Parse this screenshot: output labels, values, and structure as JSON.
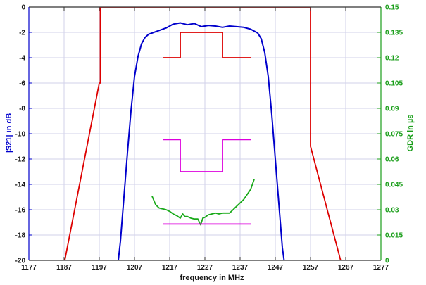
{
  "chart_data": {
    "type": "line",
    "title": "",
    "xlabel": "frequency in MHz",
    "ylabel": "|S21| in dB",
    "y2label": "GDR in µs",
    "xlim": [
      1177,
      1277
    ],
    "ylim": [
      -20,
      0
    ],
    "y2lim": [
      0,
      0.15
    ],
    "xticks": [
      1177,
      1187,
      1197,
      1207,
      1217,
      1227,
      1237,
      1247,
      1257,
      1267,
      1277
    ],
    "yticks": [
      0,
      -2,
      -4,
      -6,
      -8,
      -10,
      -12,
      -14,
      -16,
      -18,
      -20
    ],
    "y2ticks": [
      "0.15",
      "0.135",
      "0.12",
      "0.105",
      "0.09",
      "0.075",
      "0.06",
      "0.045",
      "0.03",
      "0.015",
      "0"
    ],
    "grid": true,
    "colors": {
      "grid": "#d2d2ea",
      "axis_left": "#0000cc",
      "axis_right": "#1a9e1a",
      "s21": "#0000cc",
      "mask": "#dd0000",
      "gdr": "#1aaa1a",
      "gdr_mask": "#dd00dd"
    },
    "series": [
      {
        "axis": "left",
        "color": "#0000cc",
        "x": [
          1202,
          1203,
          1204,
          1205,
          1206,
          1207,
          1208,
          1209,
          1210,
          1211,
          1212,
          1213,
          1214,
          1216,
          1218,
          1220,
          1222,
          1224,
          1226,
          1228,
          1230,
          1232,
          1234,
          1236,
          1238,
          1240,
          1242,
          1243,
          1244,
          1245,
          1246,
          1247,
          1248,
          1249,
          1250
        ],
        "y": [
          -21,
          -18.5,
          -15,
          -11.5,
          -8.2,
          -5.5,
          -3.9,
          -2.9,
          -2.4,
          -2.15,
          -2.05,
          -1.95,
          -1.85,
          -1.65,
          -1.35,
          -1.25,
          -1.4,
          -1.3,
          -1.55,
          -1.45,
          -1.5,
          -1.6,
          -1.5,
          -1.55,
          -1.6,
          -1.75,
          -2.05,
          -2.5,
          -3.6,
          -5.5,
          -8.5,
          -12,
          -15.5,
          -19,
          -21
        ]
      },
      {
        "axis": "left",
        "color": "#dd0000",
        "x": [
          1186.5,
          1197,
          1197.3,
          1197.3,
          1257,
          1257,
          1266.5
        ],
        "y": [
          -21,
          -6,
          -6,
          0,
          0,
          -11,
          -21
        ]
      },
      {
        "axis": "left",
        "color": "#dd0000",
        "x": [
          1215,
          1220,
          1220,
          1232,
          1232,
          1240
        ],
        "y": [
          -4,
          -4,
          -2,
          -2,
          -4,
          -4
        ]
      },
      {
        "axis": "right",
        "color": "#1aaa1a",
        "x": [
          1212,
          1213,
          1214,
          1215,
          1216,
          1217,
          1218,
          1219,
          1220,
          1220.7,
          1221.3,
          1222,
          1223,
          1224,
          1225,
          1225.8,
          1226.4,
          1227,
          1228,
          1229,
          1230,
          1231,
          1232,
          1233,
          1234,
          1235,
          1236,
          1237,
          1238,
          1239,
          1240,
          1241
        ],
        "y": [
          0.038,
          0.033,
          0.031,
          0.0305,
          0.03,
          0.029,
          0.0275,
          0.0265,
          0.025,
          0.0275,
          0.026,
          0.026,
          0.025,
          0.0245,
          0.0245,
          0.021,
          0.025,
          0.0255,
          0.027,
          0.0275,
          0.028,
          0.0275,
          0.028,
          0.028,
          0.028,
          0.03,
          0.032,
          0.034,
          0.036,
          0.039,
          0.042,
          0.048
        ]
      },
      {
        "axis": "right",
        "color": "#dd00dd",
        "x": [
          1215,
          1220,
          1220,
          1232,
          1232,
          1240
        ],
        "y": [
          0.0715,
          0.0715,
          0.0525,
          0.0525,
          0.0715,
          0.0715
        ]
      },
      {
        "axis": "right",
        "color": "#dd00dd",
        "x": [
          1215,
          1240
        ],
        "y": [
          0.0215,
          0.0215
        ]
      }
    ]
  }
}
